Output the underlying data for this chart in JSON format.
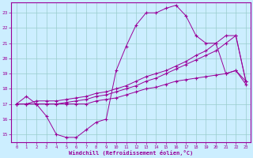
{
  "xlabel": "Windchill (Refroidissement éolien,°C)",
  "xlim": [
    -0.5,
    23.5
  ],
  "ylim": [
    14.5,
    23.7
  ],
  "yticks": [
    15,
    16,
    17,
    18,
    19,
    20,
    21,
    22,
    23
  ],
  "xticks": [
    0,
    1,
    2,
    3,
    4,
    5,
    6,
    7,
    8,
    9,
    10,
    11,
    12,
    13,
    14,
    15,
    16,
    17,
    18,
    19,
    20,
    21,
    22,
    23
  ],
  "bg_color": "#cceeff",
  "line_color": "#990099",
  "grid_color": "#99cccc",
  "line1_x": [
    0,
    1,
    2,
    3,
    4,
    5,
    6,
    7,
    8,
    9,
    10,
    11,
    12,
    13,
    14,
    15,
    16,
    17,
    18,
    19,
    20,
    21,
    22,
    23
  ],
  "line1_y": [
    17.0,
    17.5,
    17.0,
    16.2,
    15.0,
    14.8,
    14.8,
    15.3,
    15.8,
    16.0,
    19.2,
    20.8,
    22.2,
    23.0,
    23.0,
    23.3,
    23.5,
    22.8,
    21.5,
    21.0,
    21.0,
    19.0,
    19.2,
    18.5
  ],
  "line2_x": [
    0,
    1,
    2,
    3,
    4,
    5,
    6,
    7,
    8,
    9,
    10,
    11,
    12,
    13,
    14,
    15,
    16,
    17,
    18,
    19,
    20,
    21,
    22,
    23
  ],
  "line2_y": [
    17.0,
    17.0,
    17.2,
    17.2,
    17.2,
    17.3,
    17.4,
    17.5,
    17.7,
    17.8,
    18.0,
    18.2,
    18.5,
    18.8,
    19.0,
    19.2,
    19.5,
    19.8,
    20.2,
    20.5,
    21.0,
    21.5,
    21.5,
    18.5
  ],
  "line3_x": [
    0,
    1,
    2,
    3,
    4,
    5,
    6,
    7,
    8,
    9,
    10,
    11,
    12,
    13,
    14,
    15,
    16,
    17,
    18,
    19,
    20,
    21,
    22,
    23
  ],
  "line3_y": [
    17.0,
    17.0,
    17.0,
    17.0,
    17.0,
    17.1,
    17.2,
    17.3,
    17.5,
    17.6,
    17.8,
    18.0,
    18.2,
    18.5,
    18.7,
    19.0,
    19.3,
    19.6,
    19.9,
    20.2,
    20.5,
    21.0,
    21.5,
    18.5
  ],
  "line4_x": [
    0,
    1,
    2,
    3,
    4,
    5,
    6,
    7,
    8,
    9,
    10,
    11,
    12,
    13,
    14,
    15,
    16,
    17,
    18,
    19,
    20,
    21,
    22,
    23
  ],
  "line4_y": [
    17.0,
    17.0,
    17.0,
    17.0,
    17.0,
    17.0,
    17.0,
    17.0,
    17.2,
    17.3,
    17.4,
    17.6,
    17.8,
    18.0,
    18.1,
    18.3,
    18.5,
    18.6,
    18.7,
    18.8,
    18.9,
    19.0,
    19.2,
    18.3
  ]
}
